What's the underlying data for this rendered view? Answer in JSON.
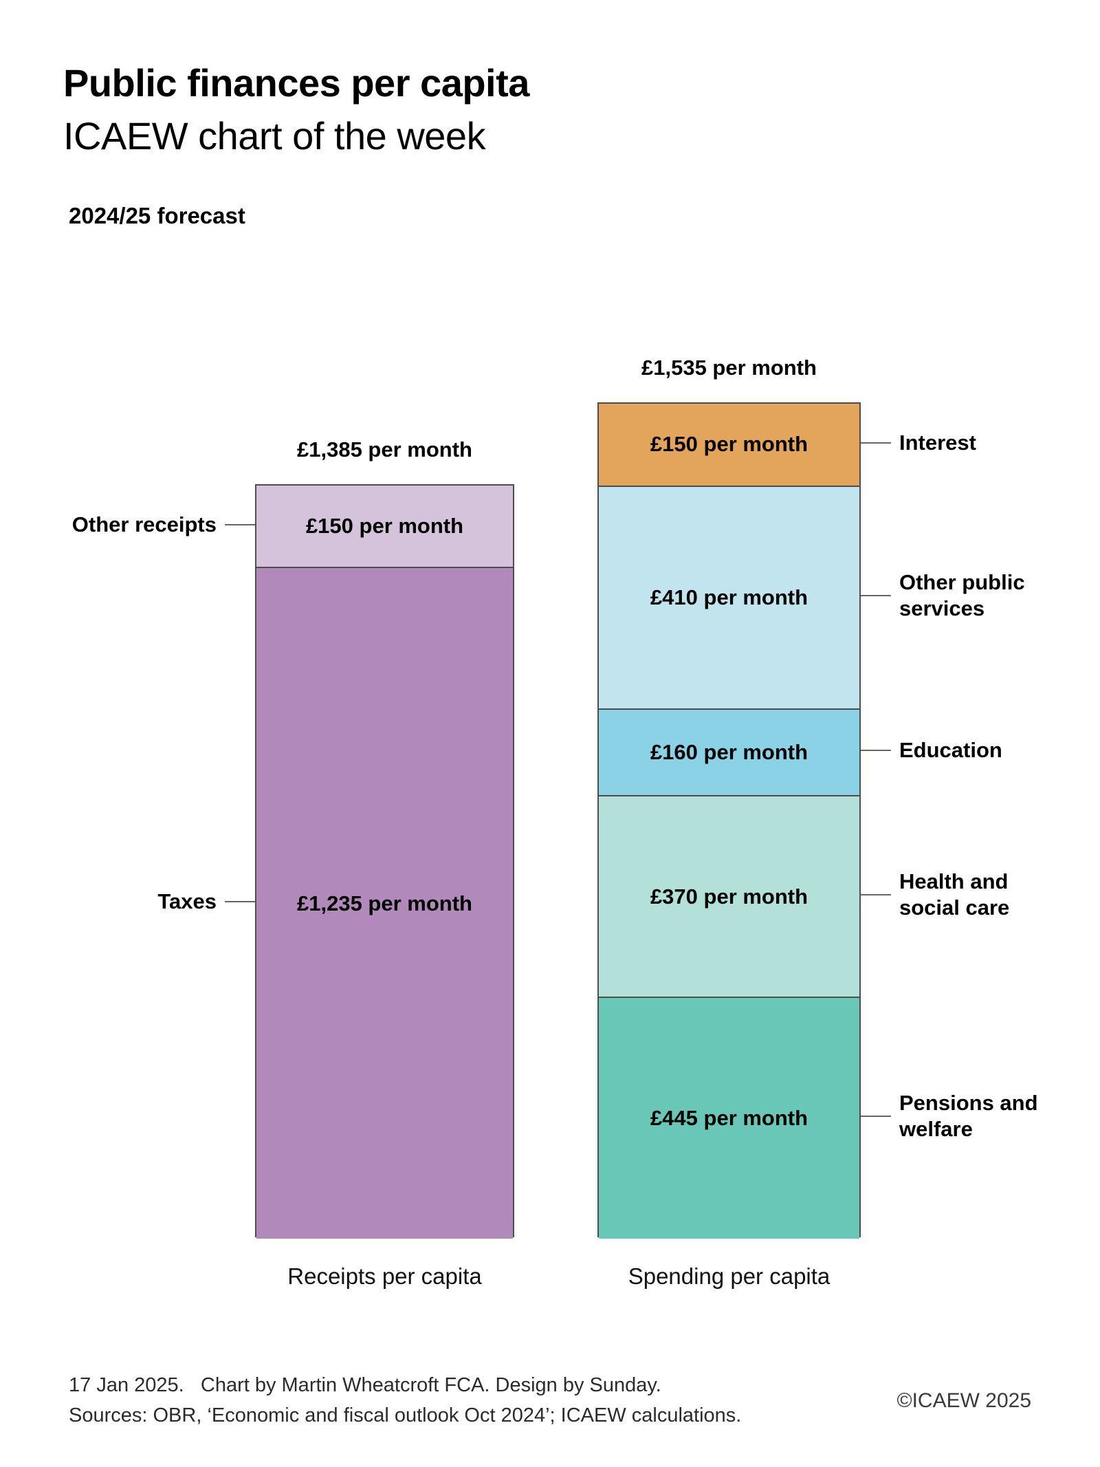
{
  "header": {
    "title": "Public finances per capita",
    "subtitle": "ICAEW chart of the week",
    "period": "2024/25 forecast"
  },
  "chart_data": {
    "type": "bar",
    "stacked": true,
    "orientation": "vertical",
    "unit": "£ per month per capita",
    "grid": false,
    "bars": [
      {
        "name": "Receipts per capita",
        "total": 1385,
        "total_label": "£1,385 per month",
        "label_side": "left",
        "segments": [
          {
            "label": "Other receipts",
            "value": 150,
            "value_label": "£150 per month",
            "color": "#d5c3dc"
          },
          {
            "label": "Taxes",
            "value": 1235,
            "value_label": "£1,235 per month",
            "color": "#b189ba"
          }
        ]
      },
      {
        "name": "Spending per capita",
        "total": 1535,
        "total_label": "£1,535 per month",
        "label_side": "right",
        "segments": [
          {
            "label": "Interest",
            "value": 150,
            "value_label": "£150 per month",
            "color": "#e2a55b"
          },
          {
            "label": "Other public services",
            "value": 410,
            "value_label": "£410 per month",
            "color": "#c2e4ef"
          },
          {
            "label": "Education",
            "value": 160,
            "value_label": "£160 per month",
            "color": "#8bd2e6"
          },
          {
            "label": "Health and social care",
            "value": 370,
            "value_label": "£370 per month",
            "color": "#b3e1da"
          },
          {
            "label": "Pensions and welfare",
            "value": 445,
            "value_label": "£445 per month",
            "color": "#69c7b7"
          }
        ]
      }
    ],
    "leader_line_color": "#666666",
    "segment_border_color": "#4d4d4d"
  },
  "footer": {
    "line1": "17 Jan 2025.   Chart by Martin Wheatcroft FCA. Design by Sunday.",
    "line2": "Sources: OBR, ‘Economic and fiscal outlook Oct 2024’; ICAEW calculations.",
    "copyright": "©ICAEW 2025"
  }
}
